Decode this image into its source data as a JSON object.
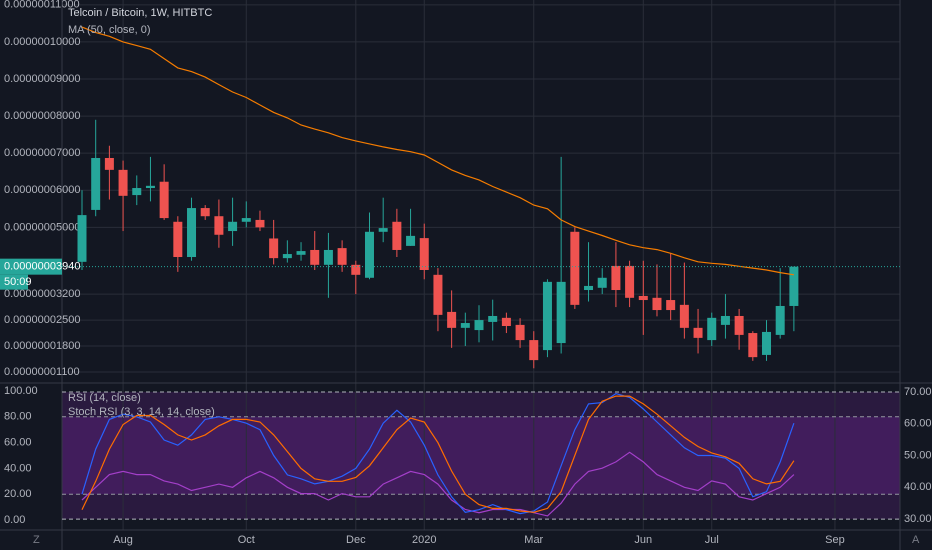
{
  "chart_data": [
    {
      "type": "candlestick",
      "title": "Telcoin / Bitcoin, 1W, HITBTC",
      "categories": [
        null,
        null,
        null,
        "Aug",
        null,
        null,
        null,
        null,
        null,
        null,
        null,
        null,
        "Oct",
        null,
        null,
        null,
        null,
        null,
        null,
        null,
        "Dec",
        null,
        null,
        null,
        null,
        "2020",
        null,
        null,
        null,
        null,
        null,
        null,
        null,
        "Mar",
        null,
        null,
        null,
        null,
        null,
        null,
        null,
        "Jun",
        null,
        null,
        null,
        null,
        "Jul",
        null,
        null,
        null,
        null,
        null,
        null,
        null,
        null,
        "Sep",
        null,
        null,
        null,
        null
      ],
      "open": [
        4.07e-08,
        5.47e-08,
        6.87e-08,
        6.55e-08,
        5.87e-08,
        6.06e-08,
        6.23e-08,
        5.15e-08,
        4.2e-08,
        5.52e-08,
        5.3e-08,
        4.9e-08,
        5.15e-08,
        5.2e-08,
        4.7e-08,
        4.17e-08,
        4.26e-08,
        4.39e-08,
        3.99e-08,
        4.44e-08,
        3.99e-08,
        3.64e-08,
        4.88e-08,
        5.15e-08,
        4.5e-08,
        4.71e-08,
        3.72e-08,
        2.72e-08,
        2.29e-08,
        2.23e-08,
        2.45e-08,
        2.56e-08,
        2.37e-08,
        1.96e-08,
        1.69e-08,
        1.88e-08,
        4.88e-08,
        3.31e-08,
        3.37e-08,
        3.96e-08,
        3.96e-08,
        3.15e-08,
        3.1e-08,
        3.04e-08,
        2.91e-08,
        2.29e-08,
        1.96e-08,
        2.37e-08,
        2.61e-08,
        2.15e-08,
        1.56e-08,
        2.1e-08,
        2.88e-08,
        null,
        null,
        null,
        null,
        null,
        null,
        null
      ],
      "high": [
        6e-08,
        7.9e-08,
        7.2e-08,
        6.8e-08,
        6.4e-08,
        6.9e-08,
        6.7e-08,
        5.3e-08,
        5.8e-08,
        5.6e-08,
        5.75e-08,
        5.8e-08,
        5.7e-08,
        5.45e-08,
        5.2e-08,
        4.65e-08,
        4.6e-08,
        4.9e-08,
        4.85e-08,
        4.65e-08,
        4.1e-08,
        5.4e-08,
        5.8e-08,
        5.5e-08,
        5.5e-08,
        5.1e-08,
        3.9e-08,
        3.3e-08,
        2.7e-08,
        2.9e-08,
        3.05e-08,
        2.7e-08,
        2.55e-08,
        2.2e-08,
        3.6e-08,
        6.9e-08,
        5e-08,
        4.6e-08,
        3.9e-08,
        4.6e-08,
        4.1e-08,
        4.1e-08,
        4e-08,
        4.3e-08,
        4.05e-08,
        2.8e-08,
        2.7e-08,
        3.2e-08,
        2.8e-08,
        2.2e-08,
        2.5e-08,
        3.9e-08,
        3.94e-08,
        null,
        null,
        null,
        null,
        null,
        null,
        null
      ],
      "low": [
        3.85e-08,
        5.3e-08,
        5.75e-08,
        4.9e-08,
        5.6e-08,
        5.7e-08,
        5.2e-08,
        3.8e-08,
        4.1e-08,
        5.2e-08,
        4.45e-08,
        4.5e-08,
        5e-08,
        4.9e-08,
        4e-08,
        4.05e-08,
        4.1e-08,
        3.85e-08,
        3.1e-08,
        3.8e-08,
        3.2e-08,
        3.6e-08,
        4.6e-08,
        4.2e-08,
        4.5e-08,
        3.6e-08,
        2.2e-08,
        1.75e-08,
        1.8e-08,
        1.9e-08,
        1.95e-08,
        2.15e-08,
        1.75e-08,
        1.2e-08,
        1.5e-08,
        1.6e-08,
        2.8e-08,
        3e-08,
        3.2e-08,
        2.85e-08,
        2.85e-08,
        2.1e-08,
        2.6e-08,
        2.5e-08,
        2e-08,
        1.6e-08,
        1.8e-08,
        2e-08,
        1.7e-08,
        1.4e-08,
        1.4e-08,
        2e-08,
        2.2e-08,
        null,
        null,
        null,
        null,
        null,
        null,
        null
      ],
      "close": [
        5.33e-08,
        6.87e-08,
        6.55e-08,
        5.85e-08,
        6.06e-08,
        6.12e-08,
        5.25e-08,
        4.2e-08,
        5.52e-08,
        5.3e-08,
        4.8e-08,
        5.15e-08,
        5.25e-08,
        5e-08,
        4.17e-08,
        4.28e-08,
        4.36e-08,
        3.99e-08,
        4.39e-08,
        3.99e-08,
        3.72e-08,
        4.88e-08,
        4.98e-08,
        4.39e-08,
        4.77e-08,
        3.85e-08,
        2.64e-08,
        2.29e-08,
        2.42e-08,
        2.5e-08,
        2.61e-08,
        2.34e-08,
        1.96e-08,
        1.42e-08,
        3.53e-08,
        3.53e-08,
        2.91e-08,
        3.42e-08,
        3.64e-08,
        3.31e-08,
        3.1e-08,
        3.04e-08,
        2.77e-08,
        2.77e-08,
        2.29e-08,
        2.02e-08,
        2.56e-08,
        2.61e-08,
        2.1e-08,
        1.5e-08,
        2.18e-08,
        2.88e-08,
        3.94e-08,
        null,
        null,
        null,
        null,
        null,
        null,
        null
      ],
      "up_color": "#26a69a",
      "down_color": "#ef5350",
      "series": [
        {
          "name": "MA (50, close, 0)",
          "color": "#f57c00",
          "values": [
            1.04e-07,
            1.025e-07,
            1.015e-07,
            1e-07,
            9.9e-08,
            9.8e-08,
            9.55e-08,
            9.3e-08,
            9.2e-08,
            9.05e-08,
            8.85e-08,
            8.65e-08,
            8.5e-08,
            8.3e-08,
            8.1e-08,
            7.95e-08,
            7.76e-08,
            7.65e-08,
            7.55e-08,
            7.42e-08,
            7.33e-08,
            7.25e-08,
            7.17e-08,
            7.1e-08,
            7.04e-08,
            6.95e-08,
            6.75e-08,
            6.55e-08,
            6.4e-08,
            6.28e-08,
            6.1e-08,
            5.95e-08,
            5.8e-08,
            5.6e-08,
            5.5e-08,
            5.2e-08,
            5.02e-08,
            4.9e-08,
            4.78e-08,
            4.65e-08,
            4.53e-08,
            4.45e-08,
            4.4e-08,
            4.3e-08,
            4.18e-08,
            4.07e-08,
            4.03e-08,
            4e-08,
            3.95e-08,
            3.9e-08,
            3.85e-08,
            3.78e-08,
            3.72e-08,
            null,
            null,
            null,
            null,
            null,
            null,
            null
          ]
        }
      ],
      "ylim": [
        8.3e-09,
        1.113e-07
      ],
      "yticks": [
        {
          "value": 1.1e-08,
          "label": "0.00000001100"
        },
        {
          "value": 1.8e-08,
          "label": "0.00000001800"
        },
        {
          "value": 2.5e-08,
          "label": "0.00000002500"
        },
        {
          "value": 3.2e-08,
          "label": "0.00000003200"
        },
        {
          "value": 5e-08,
          "label": "0.00000005000"
        },
        {
          "value": 6e-08,
          "label": "0.00000006000"
        },
        {
          "value": 7e-08,
          "label": "0.00000007000"
        },
        {
          "value": 8e-08,
          "label": "0.00000008000"
        },
        {
          "value": 9e-08,
          "label": "0.00000009000"
        },
        {
          "value": 1e-07,
          "label": "0.00000010000"
        },
        {
          "value": 1.1e-07,
          "label": "0.00000011000"
        }
      ],
      "last_price": {
        "value": 3.94e-08,
        "label": "0.00000003940"
      },
      "countdown": "50:09",
      "grid": true
    },
    {
      "type": "line",
      "series": [
        {
          "name": "RSI (14, close)",
          "color": "#a33fc9",
          "axis": "y2",
          "values": [
            36,
            40,
            44,
            45,
            44,
            44,
            42,
            41,
            39,
            40,
            41,
            40,
            43,
            45,
            43,
            40,
            38,
            38,
            36,
            38,
            37,
            37,
            41,
            43,
            45,
            44,
            41,
            36,
            33,
            32,
            33,
            33,
            33,
            32,
            31,
            35,
            41,
            45,
            46,
            48,
            51,
            48,
            44,
            42,
            40,
            39,
            42,
            41,
            37,
            36,
            38,
            40,
            44,
            null,
            null,
            null,
            null,
            null,
            null,
            null
          ]
        },
        {
          "name": "Stoch RSI (3, 3, 14, 14, close)",
          "color": "#2962ff",
          "values": [
            20,
            55,
            78,
            82,
            80,
            76,
            62,
            58,
            66,
            78,
            80,
            78,
            75,
            70,
            50,
            35,
            32,
            28,
            30,
            34,
            40,
            55,
            75,
            85,
            76,
            58,
            35,
            18,
            6,
            8,
            12,
            8,
            5,
            7,
            14,
            42,
            70,
            90,
            91,
            98,
            95,
            86,
            76,
            66,
            56,
            50,
            50,
            48,
            40,
            18,
            22,
            45,
            75,
            null,
            null,
            null,
            null,
            null,
            null,
            null
          ],
          "d_color": "#ff6d00",
          "d_values": [
            8,
            30,
            55,
            74,
            81,
            81,
            74,
            66,
            62,
            66,
            73,
            78,
            78,
            76,
            66,
            53,
            40,
            32,
            30,
            30,
            33,
            42,
            56,
            70,
            79,
            76,
            60,
            38,
            20,
            12,
            9,
            9,
            7,
            6,
            9,
            22,
            50,
            78,
            92,
            96,
            96,
            90,
            82,
            73,
            64,
            57,
            52,
            49,
            44,
            32,
            28,
            30,
            46,
            null,
            null,
            null,
            null,
            null,
            null,
            null
          ]
        }
      ],
      "ylim": [
        -7.7,
        105.4
      ],
      "yticks": [
        {
          "value": 0,
          "label": "0.00"
        },
        {
          "value": 20,
          "label": "20.00"
        },
        {
          "value": 40,
          "label": "40.00"
        },
        {
          "value": 60,
          "label": "60.00"
        },
        {
          "value": 80,
          "label": "80.00"
        },
        {
          "value": 100,
          "label": "100.00"
        }
      ],
      "y2lim": [
        26.56,
        72.5
      ],
      "y2ticks": [
        {
          "value": 30,
          "label": "30.00"
        },
        {
          "value": 40,
          "label": "40.00"
        },
        {
          "value": 50,
          "label": "50.00"
        },
        {
          "value": 60,
          "label": "60.00"
        },
        {
          "value": 70,
          "label": "70.00"
        }
      ],
      "levels": [
        20,
        80
      ],
      "y2levels": [
        30,
        70
      ]
    }
  ],
  "corner_labels": [
    "Z",
    "A"
  ]
}
